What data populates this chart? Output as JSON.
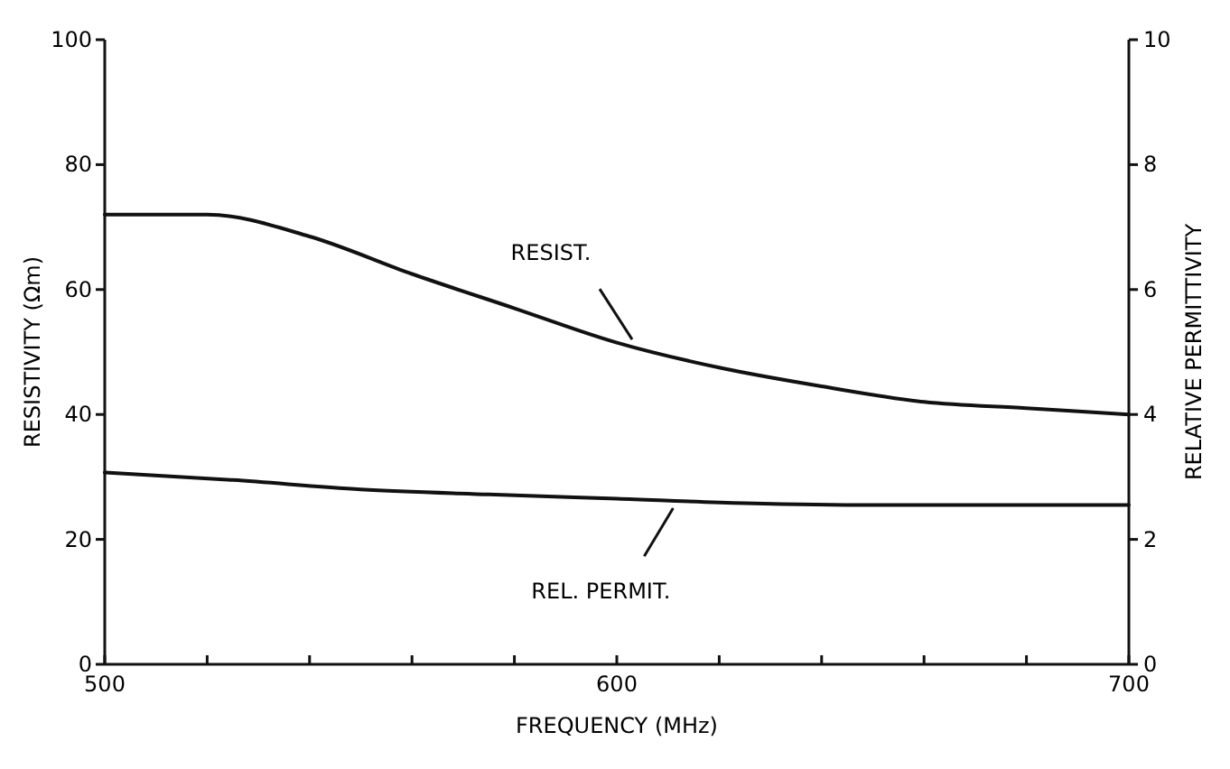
{
  "chart_data": {
    "type": "line",
    "xlabel": "FREQUENCY (MHz)",
    "ylabel": "RESISTIVITY (Ωm)",
    "y2label": "RELATIVE PERMITTIVITY",
    "xlim": [
      500,
      700
    ],
    "xticks": [
      500,
      {
        "value": 520,
        "label": null
      },
      {
        "value": 540,
        "label": null
      },
      {
        "value": 560,
        "label": null
      },
      {
        "value": 580,
        "label": null
      },
      600,
      {
        "value": 620,
        "label": null
      },
      {
        "value": 640,
        "label": null
      },
      {
        "value": 660,
        "label": null
      },
      {
        "value": 680,
        "label": null
      },
      700
    ],
    "ylim": [
      0,
      100
    ],
    "yticks": [
      0,
      20,
      40,
      60,
      80,
      100
    ],
    "y2lim": [
      0,
      10
    ],
    "y2ticks": [
      0,
      2,
      4,
      6,
      8,
      10
    ],
    "series": [
      {
        "color": "#111111",
        "x": [
          500,
          520,
          540,
          560,
          580,
          600,
          620,
          640,
          660,
          680,
          700
        ],
        "values": [
          72,
          72,
          68.5,
          62.5,
          57,
          51.5,
          47.5,
          44.5,
          42,
          41,
          40
        ]
      },
      {
        "color": "#111111",
        "axis": "y2",
        "x": [
          500,
          525,
          550,
          575,
          600,
          625,
          650,
          675,
          700
        ],
        "values": [
          3.07,
          2.95,
          2.8,
          2.72,
          2.65,
          2.58,
          2.55,
          2.55,
          2.55
        ]
      }
    ],
    "annotations": [
      {
        "text": "RESIST.",
        "x": 603,
        "y": 52
      },
      {
        "text": "REL. PERMIT.",
        "x": 611,
        "y": 25
      }
    ],
    "marker": "none",
    "line_style": "solid"
  }
}
